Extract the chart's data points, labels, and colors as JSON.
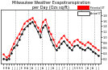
{
  "title": "Milwaukee Weather Evapotranspiration\nper Day (Ozs sq/ft)",
  "title_fontsize": 3.5,
  "background_color": "#ffffff",
  "plot_bg_color": "#ffffff",
  "ylabel_right": [
    "1.8",
    "1.6",
    "1.4",
    "1.2",
    "1.0",
    "0.8",
    "0.6",
    "0.4",
    "0.2"
  ],
  "ylim": [
    0.0,
    2.0
  ],
  "xlim": [
    0,
    38
  ],
  "legend_label_red": "Potential ET",
  "legend_label_black": "Actual ET",
  "vlines": [
    5.5,
    10.5,
    15.5,
    20.5,
    25.5,
    30.5,
    35.5
  ],
  "x_red": [
    1,
    2,
    3,
    4,
    5,
    6,
    7,
    8,
    9,
    10,
    11,
    12,
    13,
    14,
    15,
    16,
    17,
    18,
    19,
    20,
    21,
    22,
    23,
    24,
    25,
    26,
    27,
    28,
    29,
    30,
    31,
    32,
    33,
    34,
    35,
    36,
    37
  ],
  "y_red": [
    0.35,
    0.25,
    0.3,
    0.55,
    0.75,
    0.95,
    1.1,
    1.3,
    1.5,
    1.6,
    1.65,
    1.7,
    1.55,
    1.35,
    1.2,
    1.55,
    1.65,
    1.35,
    1.1,
    0.9,
    0.65,
    0.8,
    0.95,
    1.05,
    0.9,
    0.8,
    0.7,
    0.85,
    0.9,
    0.8,
    0.75,
    0.7,
    0.8,
    0.75,
    0.65,
    0.6,
    0.5
  ],
  "x_black": [
    1,
    2,
    3,
    4,
    5,
    6,
    7,
    8,
    9,
    10,
    11,
    12,
    13,
    14,
    15,
    16,
    17,
    18,
    19,
    20,
    21,
    22,
    23,
    24,
    25,
    26,
    27,
    28,
    29,
    30,
    31,
    32,
    33,
    34,
    35,
    36,
    37
  ],
  "y_black": [
    0.2,
    0.15,
    0.2,
    0.4,
    0.6,
    0.7,
    0.9,
    1.1,
    1.3,
    1.4,
    1.5,
    1.55,
    1.4,
    1.2,
    1.0,
    1.35,
    1.45,
    1.2,
    0.9,
    0.7,
    0.5,
    0.6,
    0.75,
    0.85,
    0.7,
    0.6,
    0.5,
    0.65,
    0.7,
    0.6,
    0.55,
    0.5,
    0.6,
    0.55,
    0.45,
    0.4,
    0.3
  ],
  "xtick_labels": [
    "E",
    "B",
    "A",
    "J",
    "J",
    "J",
    "J",
    "E",
    "B",
    "A",
    "J",
    "A",
    "J",
    "J",
    "J",
    "A",
    "J",
    "J",
    "J",
    "A",
    "J",
    "J",
    "J",
    "7",
    "J",
    "J",
    "J",
    "S",
    "S",
    "S",
    "S",
    "J",
    "A",
    "J",
    "A",
    "J",
    "J"
  ],
  "dot_size": 3.0,
  "line_width": 0.5,
  "legend_box_color_red": "#ff0000",
  "legend_box_color_black": "#000000"
}
